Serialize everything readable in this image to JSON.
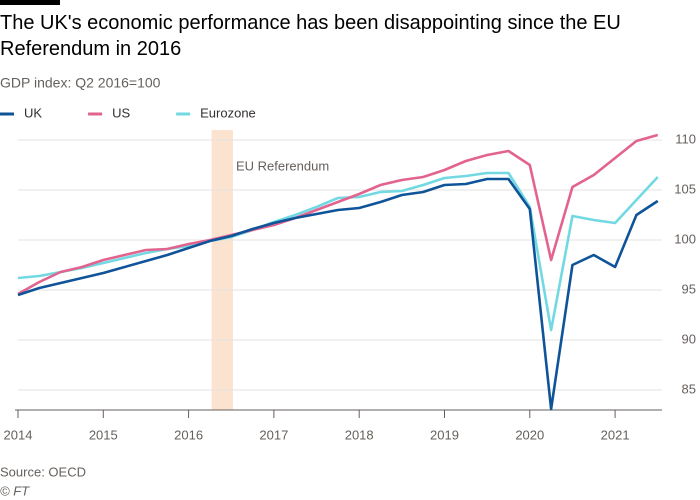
{
  "chart_data": {
    "type": "line",
    "title": "The UK's economic performance has been disappointing since the EU Referendum in 2016",
    "subtitle": "GDP index: Q2 2016=100",
    "source": "Source: OECD",
    "credit": "© FT",
    "band": {
      "label": "EU Referendum",
      "x": [
        2016.27,
        2016.52
      ],
      "color": "#fbe3cf"
    },
    "x": [
      2014,
      2014.25,
      2014.5,
      2014.75,
      2015,
      2015.25,
      2015.5,
      2015.75,
      2016,
      2016.25,
      2016.5,
      2016.75,
      2017,
      2017.25,
      2017.5,
      2017.75,
      2018,
      2018.25,
      2018.5,
      2018.75,
      2019,
      2019.25,
      2019.5,
      2019.75,
      2020,
      2020.25,
      2020.5,
      2020.75,
      2021,
      2021.25,
      2021.5
    ],
    "series": [
      {
        "name": "UK",
        "color": "#0f5499",
        "values": [
          94.5,
          95.2,
          95.7,
          96.2,
          96.7,
          97.3,
          97.9,
          98.5,
          99.2,
          99.9,
          100.4,
          101.1,
          101.7,
          102.2,
          102.6,
          103.0,
          103.2,
          103.8,
          104.5,
          104.8,
          105.5,
          105.6,
          106.1,
          106.1,
          103.1,
          83.1,
          97.5,
          98.5,
          97.3,
          102.5,
          103.9
        ]
      },
      {
        "name": "US",
        "color": "#e3638f",
        "values": [
          94.6,
          95.8,
          96.8,
          97.3,
          98.0,
          98.5,
          99.0,
          99.1,
          99.6,
          100.0,
          100.5,
          101.0,
          101.5,
          102.2,
          103.0,
          103.8,
          104.6,
          105.5,
          106.0,
          106.3,
          107.0,
          107.9,
          108.5,
          108.9,
          107.5,
          98.0,
          105.3,
          106.5,
          108.2,
          109.9,
          110.5
        ]
      },
      {
        "name": "Eurozone",
        "color": "#72d9e3",
        "values": [
          96.2,
          96.4,
          96.8,
          97.2,
          97.7,
          98.2,
          98.7,
          99.1,
          99.4,
          99.9,
          100.3,
          101.0,
          101.8,
          102.5,
          103.3,
          104.2,
          104.3,
          104.8,
          104.9,
          105.5,
          106.2,
          106.4,
          106.7,
          106.7,
          103.3,
          91.0,
          102.4,
          102.0,
          101.7,
          104.0,
          106.3
        ]
      }
    ],
    "xlim": [
      2014,
      2021.55
    ],
    "xticks": [
      2014,
      2015,
      2016,
      2017,
      2018,
      2019,
      2020,
      2021
    ],
    "ylim": [
      83,
      111
    ],
    "yticks": [
      85,
      90,
      95,
      100,
      105,
      110
    ],
    "grid": true
  }
}
